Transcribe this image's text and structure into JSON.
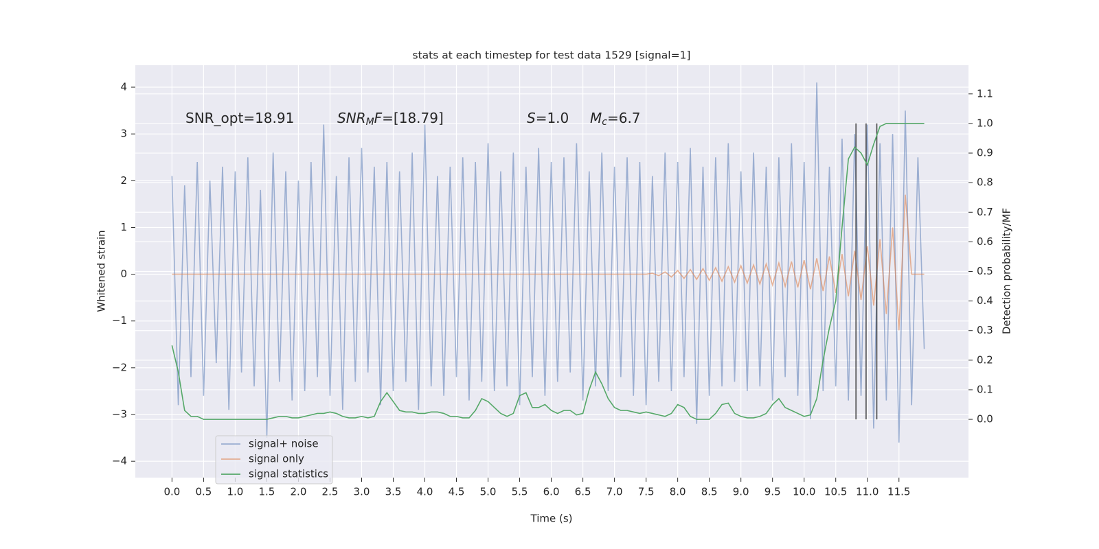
{
  "chart_data": {
    "type": "line",
    "title": "stats at each timestep for test data 1529 [signal=1]",
    "xlabel": "Time (s)",
    "ylabel": "Whitened strain",
    "y2label": "Detection probability/MF",
    "annotations": [
      {
        "parts": [
          {
            "text": "SNR_opt=18.91",
            "style": "normal"
          }
        ]
      },
      {
        "parts": [
          {
            "text": "SNR",
            "style": "italic"
          },
          {
            "text": "M",
            "style": "sub"
          },
          {
            "text": "F",
            "style": "italic"
          },
          {
            "text": "=[18.79]",
            "style": "normal"
          }
        ]
      },
      {
        "parts": [
          {
            "text": "S",
            "style": "italic"
          },
          {
            "text": "=1.0",
            "style": "normal"
          }
        ]
      },
      {
        "parts": [
          {
            "text": "M",
            "style": "italic"
          },
          {
            "text": "c",
            "style": "sub"
          },
          {
            "text": "=6.7",
            "style": "normal"
          }
        ]
      }
    ],
    "x": [
      0,
      0.1,
      0.2,
      0.3,
      0.4,
      0.5,
      0.6,
      0.7,
      0.8,
      0.9,
      1,
      1.1,
      1.2,
      1.3,
      1.4,
      1.5,
      1.6,
      1.7,
      1.8,
      1.9,
      2,
      2.1,
      2.2,
      2.3,
      2.4,
      2.5,
      2.6,
      2.7,
      2.8,
      2.9,
      3,
      3.1,
      3.2,
      3.3,
      3.4,
      3.5,
      3.6,
      3.7,
      3.8,
      3.9,
      4,
      4.1,
      4.2,
      4.3,
      4.4,
      4.5,
      4.6,
      4.7,
      4.8,
      4.9,
      5,
      5.1,
      5.2,
      5.3,
      5.4,
      5.5,
      5.6,
      5.7,
      5.8,
      5.9,
      6,
      6.1,
      6.2,
      6.3,
      6.4,
      6.5,
      6.6,
      6.7,
      6.8,
      6.9,
      7,
      7.1,
      7.2,
      7.3,
      7.4,
      7.5,
      7.6,
      7.7,
      7.8,
      7.9,
      8,
      8.1,
      8.2,
      8.3,
      8.4,
      8.5,
      8.6,
      8.7,
      8.8,
      8.9,
      9,
      9.1,
      9.2,
      9.3,
      9.4,
      9.5,
      9.6,
      9.7,
      9.8,
      9.9,
      10,
      10.1,
      10.2,
      10.3,
      10.4,
      10.5,
      10.6,
      10.7,
      10.8,
      10.9,
      11,
      11.1,
      11.2,
      11.3,
      11.4,
      11.5,
      11.6,
      11.7,
      11.8,
      11.9
    ],
    "series": [
      {
        "name": "signal+ noise",
        "color": "#4c72b0",
        "opacity": 0.5,
        "axis": "y",
        "values": [
          2.1,
          -2.8,
          1.9,
          -2.2,
          2.4,
          -2.6,
          2.0,
          -1.9,
          2.3,
          -2.9,
          2.2,
          -2.1,
          2.5,
          -2.4,
          1.8,
          -3.5,
          2.6,
          -2.3,
          2.2,
          -2.7,
          2.0,
          -2.5,
          2.4,
          -2.2,
          3.2,
          -2.6,
          2.1,
          -2.9,
          2.5,
          -2.3,
          2.7,
          -2.1,
          2.3,
          -2.8,
          2.4,
          -2.5,
          2.2,
          -2.3,
          2.6,
          -2.9,
          3.2,
          -2.4,
          2.1,
          -2.6,
          2.3,
          -2.2,
          2.5,
          -2.7,
          2.4,
          -2.3,
          2.8,
          -2.5,
          2.2,
          -2.4,
          2.6,
          -2.8,
          2.3,
          -2.2,
          2.7,
          -2.6,
          2.4,
          -2.3,
          2.5,
          -2.1,
          2.8,
          -2.7,
          2.2,
          -2.4,
          2.6,
          -2.5,
          2.3,
          -2.2,
          2.5,
          -2.6,
          2.4,
          -2.8,
          2.1,
          -2.3,
          2.6,
          -2.5,
          2.4,
          -2.2,
          2.7,
          -3.2,
          2.3,
          -2.6,
          2.5,
          -2.4,
          2.8,
          -2.3,
          2.2,
          -2.5,
          2.6,
          -2.4,
          2.3,
          -2.7,
          2.5,
          -2.2,
          2.8,
          -2.6,
          2.4,
          -3.1,
          4.1,
          -2.5,
          2.3,
          -2.4,
          2.9,
          -2.7,
          3.0,
          -2.6,
          3.2,
          -3.3,
          2.8,
          -2.7,
          3.0,
          -3.6,
          3.5,
          -2.8,
          2.5,
          -1.6
        ]
      },
      {
        "name": "signal only",
        "color": "#dd8452",
        "opacity": 0.6,
        "axis": "y",
        "values": [
          0,
          0,
          0,
          0,
          0,
          0,
          0,
          0,
          0,
          0,
          0,
          0,
          0,
          0,
          0,
          0,
          0,
          0,
          0,
          0,
          0,
          0,
          0,
          0,
          0,
          0,
          0,
          0,
          0,
          0,
          0,
          0,
          0,
          0,
          0,
          0,
          0,
          0,
          0,
          0,
          0,
          0,
          0,
          0,
          0,
          0,
          0,
          0,
          0,
          0,
          0,
          0,
          0,
          0,
          0,
          0,
          0,
          0,
          0,
          0,
          0,
          0,
          0,
          0,
          0,
          0,
          0,
          0,
          0,
          0,
          0,
          0,
          0,
          0,
          0,
          0,
          0.02,
          -0.03,
          0.05,
          -0.06,
          0.08,
          -0.09,
          0.1,
          -0.11,
          0.12,
          -0.13,
          0.14,
          -0.15,
          0.16,
          -0.17,
          0.18,
          -0.19,
          0.2,
          -0.21,
          0.22,
          -0.23,
          0.24,
          -0.26,
          0.27,
          -0.28,
          0.3,
          -0.32,
          0.34,
          -0.36,
          0.38,
          -0.4,
          0.43,
          -0.47,
          0.5,
          -0.55,
          0.6,
          -0.67,
          0.75,
          -0.85,
          1.0,
          -1.2,
          1.7,
          0,
          0,
          0
        ]
      },
      {
        "name": "signal statistics",
        "color": "#55a868",
        "opacity": 1,
        "axis": "y2",
        "values": [
          0.25,
          0.16,
          0.03,
          0.01,
          0.01,
          0,
          0,
          0,
          0,
          0,
          0,
          0,
          0,
          0,
          0,
          0,
          0.005,
          0.01,
          0.01,
          0.005,
          0.005,
          0.01,
          0.015,
          0.02,
          0.02,
          0.025,
          0.02,
          0.01,
          0.005,
          0.005,
          0.01,
          0.005,
          0.01,
          0.06,
          0.09,
          0.06,
          0.03,
          0.025,
          0.025,
          0.02,
          0.02,
          0.025,
          0.025,
          0.02,
          0.01,
          0.01,
          0.005,
          0.005,
          0.03,
          0.07,
          0.06,
          0.04,
          0.02,
          0.01,
          0.02,
          0.08,
          0.09,
          0.04,
          0.04,
          0.05,
          0.03,
          0.02,
          0.03,
          0.03,
          0.015,
          0.02,
          0.1,
          0.16,
          0.12,
          0.07,
          0.04,
          0.03,
          0.03,
          0.025,
          0.02,
          0.025,
          0.02,
          0.015,
          0.01,
          0.02,
          0.05,
          0.04,
          0.01,
          0,
          0,
          0,
          0.02,
          0.05,
          0.055,
          0.02,
          0.01,
          0.005,
          0.005,
          0.01,
          0.02,
          0.05,
          0.07,
          0.04,
          0.03,
          0.02,
          0.01,
          0.015,
          0.07,
          0.2,
          0.31,
          0.4,
          0.65,
          0.88,
          0.92,
          0.9,
          0.86,
          0.93,
          0.99,
          1.0,
          1.0,
          1.0,
          1.0,
          1.0,
          1.0,
          1.0
        ]
      }
    ],
    "vlines": [
      10.82,
      10.98,
      11.15
    ],
    "vline_range": [
      0,
      1
    ],
    "vline_color": "#404040",
    "xlim": [
      -0.58,
      12.6
    ],
    "ylim": [
      -4.35,
      4.47
    ],
    "y2lim": [
      -0.197,
      1.197
    ],
    "xticks": [
      {
        "value": 0,
        "label": "0.0"
      },
      {
        "value": 0.5,
        "label": "0.5"
      },
      {
        "value": 1,
        "label": "1.0"
      },
      {
        "value": 1.5,
        "label": "1.5"
      },
      {
        "value": 2,
        "label": "2.0"
      },
      {
        "value": 2.5,
        "label": "2.5"
      },
      {
        "value": 3,
        "label": "3.0"
      },
      {
        "value": 3.5,
        "label": "3.5"
      },
      {
        "value": 4,
        "label": "4.0"
      },
      {
        "value": 4.5,
        "label": "4.5"
      },
      {
        "value": 5,
        "label": "5.0"
      },
      {
        "value": 5.5,
        "label": "5.5"
      },
      {
        "value": 6,
        "label": "6.0"
      },
      {
        "value": 6.5,
        "label": "6.5"
      },
      {
        "value": 7,
        "label": "7.0"
      },
      {
        "value": 7.5,
        "label": "7.5"
      },
      {
        "value": 8,
        "label": "8.0"
      },
      {
        "value": 8.5,
        "label": "8.5"
      },
      {
        "value": 9,
        "label": "9.0"
      },
      {
        "value": 9.5,
        "label": "9.5"
      },
      {
        "value": 10,
        "label": "10.0"
      },
      {
        "value": 10.5,
        "label": "10.5"
      },
      {
        "value": 11,
        "label": "11.0"
      },
      {
        "value": 11.5,
        "label": "11.5"
      }
    ],
    "yticks": [
      {
        "value": -4,
        "label": "−4"
      },
      {
        "value": -3,
        "label": "−3"
      },
      {
        "value": -2,
        "label": "−2"
      },
      {
        "value": -1,
        "label": "−1"
      },
      0,
      1,
      2,
      3,
      4
    ],
    "y2ticks": [
      {
        "value": 0,
        "label": "0.0"
      },
      {
        "value": 0.1,
        "label": "0.1"
      },
      {
        "value": 0.2,
        "label": "0.2"
      },
      {
        "value": 0.3,
        "label": "0.3"
      },
      {
        "value": 0.4,
        "label": "0.4"
      },
      {
        "value": 0.5,
        "label": "0.5"
      },
      {
        "value": 0.6,
        "label": "0.6"
      },
      {
        "value": 0.7,
        "label": "0.7"
      },
      {
        "value": 0.8,
        "label": "0.8"
      },
      {
        "value": 0.9,
        "label": "0.9"
      },
      {
        "value": 1,
        "label": "1.0"
      },
      {
        "value": 1.1,
        "label": "1.1"
      }
    ],
    "grid": true,
    "legend": "lower left"
  }
}
